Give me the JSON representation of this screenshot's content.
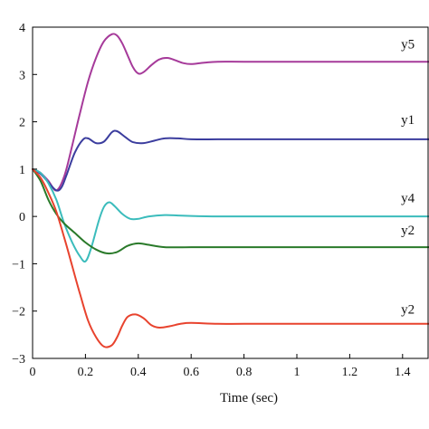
{
  "chart_data": {
    "type": "line",
    "title": "",
    "xlabel": "Time (sec)",
    "ylabel": "",
    "xlim": [
      0,
      1.5
    ],
    "ylim": [
      -3,
      4
    ],
    "xticks": [
      0,
      0.2,
      0.4,
      0.6,
      0.8,
      1,
      1.2,
      1.4
    ],
    "xtick_labels": [
      "0",
      "0.2",
      "0.4",
      "0.6",
      "0.8",
      "1",
      "1.2",
      "1.4"
    ],
    "yticks": [
      -3,
      -2,
      -1,
      0,
      1,
      2,
      3,
      4
    ],
    "ytick_labels": [
      "−3",
      "−2",
      "−1",
      "0",
      "1",
      "2",
      "3",
      "4"
    ],
    "grid": false,
    "legend": "none",
    "series": [
      {
        "name": "y5",
        "color": "#a63a9a",
        "label_at": [
          1.42,
          3.55
        ],
        "x": [
          0,
          0.03,
          0.06,
          0.09,
          0.12,
          0.15,
          0.18,
          0.21,
          0.24,
          0.27,
          0.3,
          0.32,
          0.34,
          0.36,
          0.38,
          0.4,
          0.42,
          0.45,
          0.48,
          0.51,
          0.54,
          0.57,
          0.6,
          0.65,
          0.7,
          0.8,
          1.0,
          1.2,
          1.5
        ],
        "y": [
          1,
          0.92,
          0.75,
          0.55,
          0.85,
          1.5,
          2.2,
          2.85,
          3.35,
          3.7,
          3.85,
          3.82,
          3.65,
          3.4,
          3.15,
          3.02,
          3.05,
          3.2,
          3.32,
          3.35,
          3.3,
          3.24,
          3.22,
          3.25,
          3.27,
          3.27,
          3.27,
          3.27,
          3.27
        ]
      },
      {
        "name": "y1",
        "color": "#3b3d9e",
        "label_at": [
          1.42,
          1.95
        ],
        "x": [
          0,
          0.03,
          0.06,
          0.09,
          0.11,
          0.13,
          0.16,
          0.19,
          0.21,
          0.24,
          0.27,
          0.3,
          0.32,
          0.35,
          0.38,
          0.42,
          0.46,
          0.5,
          0.55,
          0.6,
          0.7,
          0.8,
          1.0,
          1.2,
          1.5
        ],
        "y": [
          1,
          0.9,
          0.72,
          0.55,
          0.62,
          0.9,
          1.35,
          1.62,
          1.65,
          1.55,
          1.58,
          1.78,
          1.8,
          1.68,
          1.57,
          1.55,
          1.6,
          1.65,
          1.65,
          1.63,
          1.63,
          1.63,
          1.63,
          1.63,
          1.63
        ]
      },
      {
        "name": "y4",
        "color": "#3bbcbc",
        "label_at": [
          1.42,
          0.3
        ],
        "x": [
          0,
          0.03,
          0.06,
          0.09,
          0.12,
          0.15,
          0.18,
          0.2,
          0.22,
          0.25,
          0.27,
          0.29,
          0.31,
          0.34,
          0.37,
          0.4,
          0.44,
          0.5,
          0.55,
          0.6,
          0.7,
          0.8,
          1.0,
          1.2,
          1.5
        ],
        "y": [
          1,
          0.92,
          0.7,
          0.35,
          -0.15,
          -0.55,
          -0.85,
          -0.95,
          -0.7,
          -0.1,
          0.2,
          0.3,
          0.22,
          0.05,
          -0.05,
          -0.05,
          0.0,
          0.03,
          0.02,
          0.01,
          0.0,
          0.0,
          0.0,
          0.0,
          0.0
        ]
      },
      {
        "name": "y2",
        "color": "#2a7a2a",
        "label_at": [
          1.42,
          -0.38
        ],
        "x": [
          0,
          0.03,
          0.06,
          0.09,
          0.12,
          0.16,
          0.2,
          0.24,
          0.28,
          0.32,
          0.36,
          0.4,
          0.44,
          0.5,
          0.6,
          0.7,
          0.8,
          1.0,
          1.2,
          1.5
        ],
        "y": [
          1,
          0.75,
          0.35,
          0.05,
          -0.15,
          -0.35,
          -0.55,
          -0.7,
          -0.78,
          -0.75,
          -0.62,
          -0.57,
          -0.6,
          -0.65,
          -0.65,
          -0.65,
          -0.65,
          -0.65,
          -0.65,
          -0.65
        ]
      },
      {
        "name": "y2",
        "color": "#e8432e",
        "label_at": [
          1.42,
          -2.05
        ],
        "x": [
          0,
          0.03,
          0.06,
          0.09,
          0.12,
          0.15,
          0.18,
          0.21,
          0.24,
          0.27,
          0.3,
          0.32,
          0.34,
          0.36,
          0.39,
          0.42,
          0.45,
          0.48,
          0.52,
          0.56,
          0.6,
          0.7,
          0.8,
          1.0,
          1.2,
          1.5
        ],
        "y": [
          1,
          0.82,
          0.5,
          0.1,
          -0.45,
          -1.05,
          -1.65,
          -2.2,
          -2.55,
          -2.75,
          -2.72,
          -2.55,
          -2.3,
          -2.12,
          -2.07,
          -2.15,
          -2.3,
          -2.35,
          -2.32,
          -2.27,
          -2.25,
          -2.27,
          -2.27,
          -2.27,
          -2.27,
          -2.27
        ]
      }
    ]
  }
}
